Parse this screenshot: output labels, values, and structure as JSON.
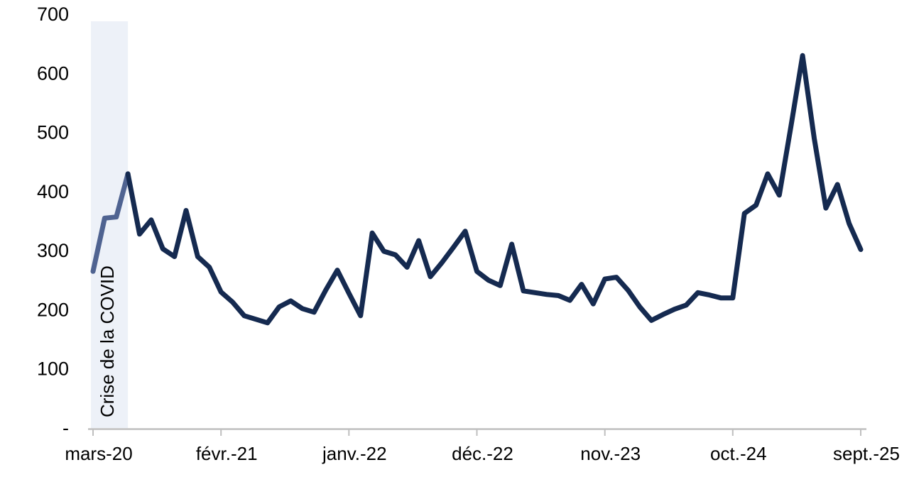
{
  "chart_data": {
    "type": "line",
    "title": "",
    "xlabel": "",
    "ylabel": "",
    "frequency": "monthly",
    "n_points": 67,
    "ylim": [
      0,
      700
    ],
    "y_tick_interval": 100,
    "grid": false,
    "legend": false,
    "y_axis": {
      "labels": [
        "700",
        "600",
        "500",
        "400",
        "300",
        "200",
        "100",
        "-"
      ],
      "values": [
        700,
        600,
        500,
        400,
        300,
        200,
        100,
        0
      ]
    },
    "x_axis": {
      "visible_tick_labels": [
        "mars-20",
        "févr.-21",
        "janv.-22",
        "déc.-22",
        "nov.-23",
        "oct.-24",
        "sept.-25"
      ],
      "visible_tick_indices": [
        0,
        11,
        22,
        33,
        44,
        55,
        66
      ]
    },
    "categories": [
      "mars-20",
      "avr.-20",
      "mai-20",
      "juin-20",
      "juil.-20",
      "août-20",
      "sept.-20",
      "oct.-20",
      "nov.-20",
      "déc.-20",
      "janv.-21",
      "févr.-21",
      "mars-21",
      "avr.-21",
      "mai-21",
      "juin-21",
      "juil.-21",
      "août-21",
      "sept.-21",
      "oct.-21",
      "nov.-21",
      "déc.-21",
      "janv.-22",
      "févr.-22",
      "mars-22",
      "avr.-22",
      "mai-22",
      "juin-22",
      "juil.-22",
      "août-22",
      "sept.-22",
      "oct.-22",
      "nov.-22",
      "déc.-22",
      "janv.-23",
      "févr.-23",
      "mars-23",
      "avr.-23",
      "mai-23",
      "juin-23",
      "juil.-23",
      "août-23",
      "sept.-23",
      "oct.-23",
      "nov.-23",
      "déc.-23",
      "janv.-24",
      "févr.-24",
      "mars-24",
      "avr.-24",
      "mai-24",
      "juin-24",
      "juil.-24",
      "août-24",
      "sept.-24",
      "oct.-24",
      "nov.-24",
      "déc.-24",
      "janv.-25",
      "févr.-25",
      "mars-25",
      "avr.-25",
      "mai-25",
      "juin-25",
      "juil.-25",
      "août-25",
      "sept.-25"
    ],
    "series": [
      {
        "name": "serie",
        "values": [
          265,
          355,
          357,
          430,
          328,
          352,
          303,
          290,
          368,
          290,
          272,
          230,
          213,
          190,
          184,
          178,
          205,
          215,
          202,
          196,
          233,
          267,
          228,
          190,
          330,
          299,
          293,
          272,
          317,
          256,
          280,
          306,
          333,
          265,
          250,
          241,
          311,
          232,
          229,
          226,
          224,
          216,
          243,
          210,
          252,
          255,
          233,
          205,
          182,
          192,
          201,
          208,
          229,
          225,
          220,
          220,
          363,
          377,
          430,
          394,
          510,
          630,
          490,
          372,
          412,
          346,
          302
        ]
      }
    ],
    "annotation": {
      "label": "Crise de la COVID",
      "band_start_index": 0,
      "band_end_index": 3
    },
    "colors": {
      "line": "#152A50",
      "line_covid_segment": "#4F6391",
      "band_fill": "#EDF1F8",
      "axis": "#BFBFBF",
      "text": "#000000"
    }
  }
}
